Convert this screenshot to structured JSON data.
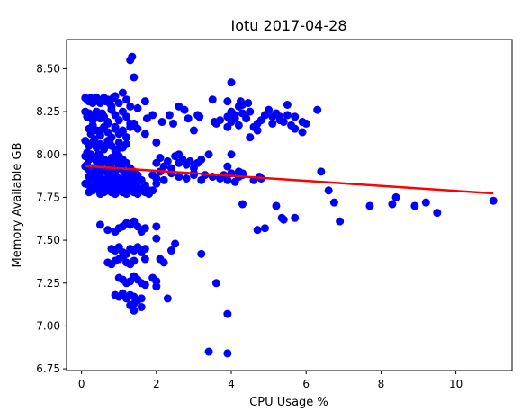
{
  "chart_data": {
    "type": "scatter",
    "title": "Iotu 2017-04-28",
    "xlabel": "CPU Usage %",
    "ylabel": "Memory Available GB",
    "xlim": [
      -0.4,
      11.5
    ],
    "ylim": [
      6.74,
      8.67
    ],
    "x_ticks": [
      0,
      2,
      4,
      6,
      8,
      10
    ],
    "x_tick_labels": [
      "0",
      "2",
      "4",
      "6",
      "8",
      "10"
    ],
    "y_ticks": [
      6.75,
      7.0,
      7.25,
      7.5,
      7.75,
      8.0,
      8.25,
      8.5
    ],
    "y_tick_labels": [
      "6.75",
      "7.00",
      "7.25",
      "7.50",
      "7.75",
      "8.00",
      "8.25",
      "8.50"
    ],
    "grid": false,
    "colors": {
      "points": "#0000ff",
      "trend": "#ff0000"
    },
    "series": [
      {
        "kind": "points",
        "x": [
          0.1,
          0.15,
          0.2,
          0.25,
          0.3,
          0.35,
          0.4,
          0.45,
          0.5,
          0.55,
          0.6,
          0.65,
          0.7,
          0.75,
          0.8,
          0.85,
          0.9,
          1.0,
          0.1,
          0.15,
          0.2,
          0.3,
          0.35,
          0.4,
          0.5,
          0.55,
          0.6,
          0.7,
          0.8,
          0.9,
          1.0,
          1.1,
          1.2,
          1.3,
          1.4,
          0.2,
          0.25,
          0.3,
          0.4,
          0.5,
          0.6,
          0.7,
          0.8,
          0.9,
          1.0,
          1.1,
          1.2,
          1.3,
          0.1,
          0.2,
          0.3,
          0.4,
          0.5,
          0.6,
          0.7,
          0.8,
          0.9,
          1.0,
          1.1,
          1.2,
          0.15,
          0.35,
          0.45,
          0.65,
          0.75,
          0.95,
          0.1,
          0.2,
          0.3,
          0.4,
          0.5,
          0.6,
          0.7,
          0.8,
          0.9,
          1.0,
          1.1,
          1.2,
          0.25,
          0.55,
          0.85,
          1.05,
          0.1,
          0.2,
          0.3,
          0.4,
          0.5,
          0.6,
          0.7,
          0.8,
          0.9,
          1.0,
          1.1,
          1.2,
          1.3,
          1.4,
          1.5,
          0.15,
          0.45,
          0.75,
          0.2,
          0.3,
          0.4,
          0.5,
          0.6,
          0.7,
          0.8,
          0.9,
          1.0,
          1.1,
          1.2,
          1.3,
          1.4,
          1.5,
          1.6,
          0.35,
          0.65,
          0.95,
          1.25,
          0.1,
          0.2,
          0.3,
          0.4,
          0.5,
          0.6,
          0.7,
          0.8,
          0.9,
          1.0,
          1.1,
          1.2,
          1.3,
          1.4,
          1.5,
          1.6,
          1.7,
          1.8,
          2.0,
          0.2,
          0.3,
          0.5,
          0.6,
          0.7,
          0.8,
          0.9,
          1.0,
          1.1,
          1.2,
          1.3,
          1.4,
          1.5,
          1.6,
          1.7,
          1.8,
          1.9,
          0.25,
          0.3,
          0.4,
          0.6,
          0.8,
          1.0,
          1.2,
          1.4,
          1.6,
          0.3,
          0.5,
          0.7,
          0.9,
          1.1,
          1.3,
          1.5,
          1.7,
          1.3,
          1.35,
          1.4,
          1.7,
          1.9,
          1.2,
          1.5,
          1.1,
          1.75,
          2.0,
          2.15,
          2.35,
          2.45,
          2.6,
          2.75,
          2.85,
          3.0,
          2.0,
          2.1,
          2.2,
          2.3,
          2.4,
          2.5,
          2.6,
          2.7,
          2.8,
          2.9,
          3.0,
          3.1,
          3.2,
          1.9,
          2.0,
          2.1,
          2.2,
          2.4,
          2.6,
          2.8,
          3.0,
          3.2,
          3.1,
          3.5,
          3.7,
          3.9,
          4.0,
          4.1,
          4.2,
          4.3,
          4.4,
          4.5,
          4.6,
          4.7,
          4.8,
          4.9,
          5.0,
          5.1,
          5.2,
          5.3,
          5.4,
          5.5,
          5.6,
          5.7,
          5.9,
          6.0,
          6.3,
          3.6,
          3.9,
          4.0,
          4.1,
          4.2,
          4.3,
          4.5,
          4.7,
          4.9,
          5.1,
          5.3,
          5.5,
          5.7,
          5.9,
          3.8,
          3.9,
          4.0,
          4.1,
          4.2,
          4.3,
          4.6,
          4.8,
          3.3,
          3.5,
          3.7,
          3.9,
          4.2,
          4.3,
          4.75,
          2.6,
          3.0,
          3.4,
          4.0,
          4.45,
          4.25,
          4.0,
          3.55,
          3.9,
          3.15,
          6.4,
          6.6,
          6.75,
          6.9,
          7.7,
          8.3,
          8.4,
          8.9,
          9.2,
          9.5,
          11.0,
          4.3,
          4.7,
          4.9,
          5.2,
          5.35,
          5.4,
          5.7,
          0.5,
          0.7,
          0.9,
          1.0,
          1.1,
          1.2,
          1.3,
          1.4,
          1.5,
          1.6,
          1.7,
          2.0,
          2.5,
          0.8,
          0.9,
          1.0,
          1.1,
          1.2,
          1.3,
          1.4,
          1.5,
          1.6,
          1.7,
          2.0,
          0.7,
          0.8,
          0.9,
          1.0,
          1.1,
          1.2,
          1.3,
          1.4,
          1.7,
          2.1,
          2.2,
          2.4,
          1.0,
          1.1,
          1.2,
          1.3,
          1.4,
          1.5,
          1.6,
          1.7,
          1.9,
          2.0,
          0.9,
          1.0,
          1.1,
          1.2,
          1.3,
          1.4,
          1.5,
          1.6,
          2.0,
          2.3,
          1.3,
          1.4,
          3.2,
          3.4,
          3.9,
          3.9,
          3.6,
          1.4,
          1.6
        ],
        "y": [
          8.33,
          8.32,
          8.31,
          8.33,
          8.3,
          8.32,
          8.33,
          8.31,
          8.3,
          8.32,
          8.33,
          8.31,
          8.32,
          8.3,
          8.28,
          8.33,
          8.34,
          8.3,
          8.25,
          8.22,
          8.24,
          8.2,
          8.23,
          8.25,
          8.21,
          8.24,
          8.22,
          8.18,
          8.26,
          8.23,
          8.2,
          8.25,
          8.22,
          8.28,
          8.18,
          8.15,
          8.12,
          8.17,
          8.14,
          8.11,
          8.16,
          8.13,
          8.1,
          8.15,
          8.12,
          8.14,
          8.1,
          8.16,
          8.08,
          8.05,
          8.07,
          8.04,
          8.06,
          8.03,
          8.08,
          8.05,
          8.02,
          8.07,
          8.04,
          8.06,
          8.01,
          8.09,
          8.0,
          8.05,
          8.08,
          8.03,
          7.99,
          7.97,
          7.98,
          7.96,
          7.99,
          7.97,
          7.95,
          7.98,
          7.96,
          7.99,
          7.97,
          7.95,
          8.0,
          7.96,
          7.98,
          7.94,
          7.93,
          7.91,
          7.92,
          7.9,
          7.93,
          7.91,
          7.89,
          7.92,
          7.9,
          7.93,
          7.91,
          7.89,
          7.92,
          7.9,
          7.88,
          7.94,
          7.91,
          7.89,
          7.87,
          7.86,
          7.85,
          7.87,
          7.84,
          7.86,
          7.85,
          7.87,
          7.84,
          7.86,
          7.85,
          7.87,
          7.84,
          7.86,
          7.85,
          7.88,
          7.83,
          7.86,
          7.88,
          7.83,
          7.82,
          7.81,
          7.8,
          7.82,
          7.79,
          7.81,
          7.8,
          7.82,
          7.79,
          7.81,
          7.8,
          7.82,
          7.79,
          7.81,
          7.8,
          7.82,
          7.79,
          7.83,
          7.78,
          7.79,
          7.77,
          7.78,
          7.79,
          7.78,
          7.77,
          7.79,
          7.78,
          7.77,
          7.79,
          7.78,
          7.77,
          7.79,
          7.78,
          7.77,
          7.79,
          7.86,
          7.88,
          7.84,
          7.85,
          7.83,
          7.86,
          7.84,
          7.82,
          7.85,
          8.17,
          8.14,
          8.19,
          8.16,
          8.13,
          8.18,
          8.15,
          8.12,
          8.55,
          8.57,
          8.45,
          8.31,
          8.23,
          8.32,
          8.27,
          8.36,
          8.21,
          8.07,
          8.19,
          8.23,
          8.18,
          8.28,
          8.26,
          8.21,
          8.14,
          7.95,
          7.98,
          7.93,
          7.96,
          7.92,
          7.99,
          7.95,
          7.97,
          7.94,
          7.96,
          7.92,
          7.95,
          7.97,
          7.88,
          7.86,
          7.9,
          7.85,
          7.89,
          7.87,
          7.86,
          7.88,
          7.85,
          8.23,
          8.32,
          8.2,
          8.22,
          8.25,
          8.23,
          8.28,
          8.29,
          8.21,
          8.25,
          8.16,
          8.18,
          8.2,
          8.23,
          8.26,
          8.22,
          8.24,
          8.22,
          8.19,
          8.29,
          8.17,
          8.22,
          8.13,
          8.18,
          8.26,
          8.18,
          8.16,
          8.19,
          8.21,
          8.17,
          8.24,
          8.1,
          8.14,
          8.23,
          8.18,
          8.2,
          8.23,
          8.15,
          8.19,
          7.88,
          7.85,
          7.89,
          7.84,
          7.87,
          7.88,
          7.85,
          7.86,
          7.88,
          7.87,
          7.86,
          7.93,
          7.9,
          7.89,
          7.87,
          8.0,
          7.89,
          8.0,
          8.0,
          8.3,
          8.31,
          8.42,
          8.19,
          8.31,
          8.22,
          7.9,
          7.79,
          7.72,
          7.61,
          7.7,
          7.71,
          7.75,
          7.7,
          7.72,
          7.66,
          7.73,
          7.71,
          7.56,
          7.57,
          7.7,
          7.63,
          7.62,
          7.63,
          7.59,
          7.56,
          7.55,
          7.57,
          7.58,
          7.6,
          7.59,
          7.61,
          7.58,
          7.55,
          7.57,
          7.58,
          7.48,
          7.45,
          7.44,
          7.46,
          7.43,
          7.42,
          7.45,
          7.44,
          7.46,
          7.43,
          7.45,
          7.51,
          7.37,
          7.36,
          7.38,
          7.39,
          7.4,
          7.37,
          7.36,
          7.38,
          7.39,
          7.39,
          7.37,
          7.44,
          7.28,
          7.27,
          7.25,
          7.26,
          7.29,
          7.27,
          7.25,
          7.24,
          7.28,
          7.26,
          7.18,
          7.17,
          7.19,
          7.16,
          7.18,
          7.17,
          7.15,
          7.16,
          7.23,
          7.16,
          7.12,
          7.13,
          7.42,
          6.85,
          7.07,
          6.84,
          7.25,
          7.09,
          7.11
        ],
        "color": "#0000ff"
      },
      {
        "kind": "trend",
        "x": [
          0.1,
          11.0
        ],
        "y": [
          7.932,
          7.773
        ],
        "color": "#ff0000"
      }
    ]
  }
}
